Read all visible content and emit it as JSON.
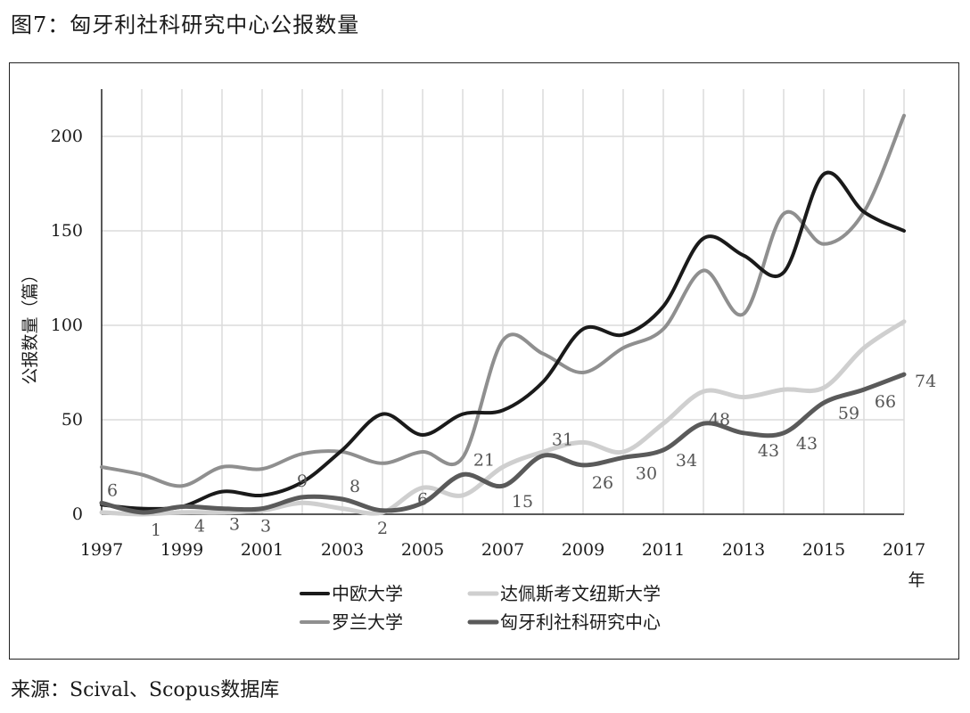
{
  "figure": {
    "title": "图7：匈牙利社科研究中心公报数量",
    "source": "来源：Scival、Scopus数据库"
  },
  "chart_data": {
    "type": "line",
    "xlabel": "年",
    "ylabel": "公报数量（篇）",
    "x": [
      1997,
      1998,
      1999,
      2000,
      2001,
      2002,
      2003,
      2004,
      2005,
      2006,
      2007,
      2008,
      2009,
      2010,
      2011,
      2012,
      2013,
      2014,
      2015,
      2016,
      2017
    ],
    "x_tick_labels": [
      "1997",
      "1999",
      "2001",
      "2003",
      "2005",
      "2007",
      "2009",
      "2011",
      "2013",
      "2015",
      "2017"
    ],
    "y_ticks": [
      0,
      50,
      100,
      150,
      200
    ],
    "ylim": [
      0,
      225
    ],
    "grid": true,
    "legend_position": "bottom",
    "series": [
      {
        "name": "中欧大学",
        "color": "#1a1a1a",
        "width": 4,
        "values": [
          5,
          3,
          4,
          12,
          10,
          17,
          34,
          53,
          42,
          53,
          55,
          70,
          98,
          95,
          110,
          146,
          137,
          128,
          180,
          160,
          150
        ]
      },
      {
        "name": "达佩斯考文纽斯大学",
        "color": "#cfcfcf",
        "width": 5,
        "values": [
          1,
          0,
          1,
          1,
          2,
          6,
          3,
          1,
          14,
          10,
          25,
          33,
          38,
          33,
          48,
          65,
          62,
          66,
          67,
          88,
          102
        ]
      },
      {
        "name": "罗兰大学",
        "color": "#8f8f8f",
        "width": 4,
        "values": [
          25,
          21,
          15,
          25,
          24,
          32,
          33,
          27,
          33,
          30,
          92,
          85,
          75,
          88,
          98,
          129,
          106,
          159,
          143,
          160,
          211
        ]
      },
      {
        "name": "匈牙利社科研究中心",
        "color": "#5a5a5a",
        "width": 5,
        "values": [
          6,
          1,
          4,
          3,
          3,
          9,
          8,
          2,
          6,
          21,
          15,
          31,
          26,
          30,
          34,
          48,
          43,
          43,
          59,
          66,
          74
        ]
      }
    ],
    "data_labels": [
      {
        "x": 1997,
        "text": "6"
      },
      {
        "x": 1998,
        "text": "1"
      },
      {
        "x": 1999,
        "text": "4"
      },
      {
        "x": 2000,
        "text": "3"
      },
      {
        "x": 2001,
        "text": "3"
      },
      {
        "x": 2002,
        "text": "9"
      },
      {
        "x": 2003,
        "text": "8"
      },
      {
        "x": 2004,
        "text": "2"
      },
      {
        "x": 2005,
        "text": "6"
      },
      {
        "x": 2006,
        "text": "21"
      },
      {
        "x": 2007,
        "text": "15"
      },
      {
        "x": 2008,
        "text": "31"
      },
      {
        "x": 2009,
        "text": "26"
      },
      {
        "x": 2010,
        "text": "30"
      },
      {
        "x": 2011,
        "text": "34"
      },
      {
        "x": 2012,
        "text": "48"
      },
      {
        "x": 2013,
        "text": "43"
      },
      {
        "x": 2014,
        "text": "43"
      },
      {
        "x": 2015,
        "text": "59"
      },
      {
        "x": 2016,
        "text": "66"
      },
      {
        "x": 2017,
        "text": "74"
      }
    ]
  }
}
